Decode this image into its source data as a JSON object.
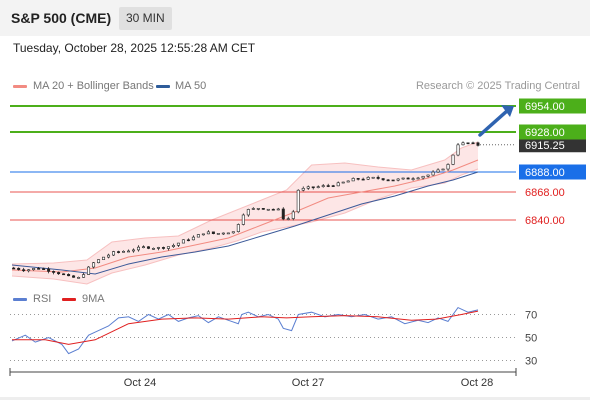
{
  "header": {
    "instrument": "S&P 500 (CME)",
    "timeframe": "30 MIN"
  },
  "datetime": "Tuesday, October 28, 2025 12:55:28 AM CET",
  "legend": {
    "ma20_label": "MA 20 + Bollinger Bands",
    "ma50_label": "MA 50",
    "ma20_color": "#f28b82",
    "ma50_color": "#2e5c9a"
  },
  "copyright": "Research © 2025 Trading Central",
  "rsi_legend": {
    "rsi_label": "RSI",
    "ma_label": "9MA",
    "rsi_color": "#5b7fd1",
    "ma_color": "#e02020"
  },
  "chart_data": [
    {
      "type": "candlestick",
      "x": [
        "Oct 24",
        "Oct 27",
        "Oct 28"
      ],
      "ylim": [
        6775,
        6960
      ],
      "levels": [
        {
          "value": 6954.0,
          "label": "6954.00",
          "color": "#4caf1a",
          "style": "resistance"
        },
        {
          "value": 6928.0,
          "label": "6928.00",
          "color": "#4caf1a",
          "style": "resistance"
        },
        {
          "value": 6915.25,
          "label": "6915.25",
          "color": "#333333",
          "style": "last"
        },
        {
          "value": 6888.0,
          "label": "6888.00",
          "color": "#1a6fe8",
          "style": "pivot"
        },
        {
          "value": 6868.0,
          "label": "6868.00",
          "color": "#e53935",
          "style": "support"
        },
        {
          "value": 6840.0,
          "label": "6840.00",
          "color": "#e53935",
          "style": "support"
        }
      ],
      "price_path": [
        [
          0,
          6792
        ],
        [
          8,
          6790
        ],
        [
          16,
          6792
        ],
        [
          24,
          6789
        ],
        [
          30,
          6786
        ],
        [
          34,
          6783
        ],
        [
          40,
          6782
        ],
        [
          44,
          6788
        ],
        [
          48,
          6796
        ],
        [
          55,
          6803
        ],
        [
          62,
          6808
        ],
        [
          68,
          6809
        ],
        [
          74,
          6811
        ],
        [
          80,
          6813
        ],
        [
          88,
          6812
        ],
        [
          96,
          6814
        ],
        [
          104,
          6820
        ],
        [
          110,
          6823
        ],
        [
          116,
          6828
        ],
        [
          122,
          6826
        ],
        [
          128,
          6828
        ],
        [
          134,
          6828
        ],
        [
          138,
          6845
        ],
        [
          142,
          6850
        ],
        [
          148,
          6852
        ],
        [
          156,
          6851
        ],
        [
          160,
          6850
        ],
        [
          163,
          6842
        ],
        [
          168,
          6841
        ],
        [
          172,
          6870
        ],
        [
          178,
          6872
        ],
        [
          188,
          6874
        ],
        [
          196,
          6876
        ],
        [
          206,
          6881
        ],
        [
          218,
          6882
        ],
        [
          230,
          6880
        ],
        [
          240,
          6882
        ],
        [
          250,
          6885
        ],
        [
          256,
          6889
        ],
        [
          262,
          6895
        ],
        [
          268,
          6916
        ],
        [
          274,
          6917
        ],
        [
          280,
          6915
        ]
      ],
      "ma20_path": [
        [
          0,
          6790
        ],
        [
          30,
          6788
        ],
        [
          50,
          6792
        ],
        [
          70,
          6803
        ],
        [
          90,
          6808
        ],
        [
          110,
          6815
        ],
        [
          130,
          6822
        ],
        [
          150,
          6835
        ],
        [
          170,
          6848
        ],
        [
          190,
          6862
        ],
        [
          210,
          6868
        ],
        [
          230,
          6874
        ],
        [
          250,
          6882
        ],
        [
          265,
          6890
        ],
        [
          280,
          6900
        ]
      ],
      "ma50_path": [
        [
          0,
          6795
        ],
        [
          30,
          6790
        ],
        [
          50,
          6786
        ],
        [
          70,
          6796
        ],
        [
          90,
          6803
        ],
        [
          110,
          6808
        ],
        [
          130,
          6814
        ],
        [
          150,
          6824
        ],
        [
          170,
          6834
        ],
        [
          190,
          6845
        ],
        [
          210,
          6856
        ],
        [
          230,
          6864
        ],
        [
          250,
          6874
        ],
        [
          265,
          6880
        ],
        [
          280,
          6888
        ]
      ],
      "bb_upper": [
        [
          0,
          6796
        ],
        [
          25,
          6797
        ],
        [
          45,
          6800
        ],
        [
          60,
          6818
        ],
        [
          80,
          6822
        ],
        [
          100,
          6824
        ],
        [
          120,
          6840
        ],
        [
          135,
          6850
        ],
        [
          150,
          6860
        ],
        [
          165,
          6870
        ],
        [
          180,
          6895
        ],
        [
          200,
          6897
        ],
        [
          220,
          6893
        ],
        [
          240,
          6890
        ],
        [
          260,
          6900
        ],
        [
          270,
          6912
        ],
        [
          280,
          6918
        ]
      ],
      "bb_lower": [
        [
          0,
          6784
        ],
        [
          25,
          6781
        ],
        [
          45,
          6776
        ],
        [
          60,
          6787
        ],
        [
          80,
          6795
        ],
        [
          100,
          6805
        ],
        [
          120,
          6812
        ],
        [
          135,
          6819
        ],
        [
          150,
          6828
        ],
        [
          165,
          6833
        ],
        [
          180,
          6838
        ],
        [
          200,
          6847
        ],
        [
          220,
          6861
        ],
        [
          240,
          6872
        ],
        [
          260,
          6877
        ],
        [
          270,
          6885
        ],
        [
          280,
          6891
        ]
      ],
      "target_arrow": {
        "from": 6925,
        "to": 6954
      }
    },
    {
      "type": "line",
      "name": "RSI",
      "ylim": [
        20,
        80
      ],
      "yticks": [
        70,
        50,
        30
      ],
      "series": [
        {
          "name": "RSI",
          "values": [
            [
              0,
              47
            ],
            [
              8,
              52
            ],
            [
              14,
              46
            ],
            [
              22,
              50
            ],
            [
              30,
              44
            ],
            [
              34,
              36
            ],
            [
              40,
              40
            ],
            [
              46,
              52
            ],
            [
              52,
              56
            ],
            [
              58,
              60
            ],
            [
              64,
              67
            ],
            [
              70,
              68
            ],
            [
              76,
              64
            ],
            [
              82,
              70
            ],
            [
              88,
              66
            ],
            [
              94,
              70
            ],
            [
              100,
              64
            ],
            [
              106,
              67
            ],
            [
              112,
              69
            ],
            [
              118,
              63
            ],
            [
              124,
              68
            ],
            [
              130,
              65
            ],
            [
              136,
              62
            ],
            [
              138,
              70
            ],
            [
              142,
              72
            ],
            [
              148,
              68
            ],
            [
              154,
              70
            ],
            [
              160,
              66
            ],
            [
              163,
              58
            ],
            [
              168,
              56
            ],
            [
              172,
              70
            ],
            [
              180,
              72
            ],
            [
              188,
              68
            ],
            [
              196,
              70
            ],
            [
              204,
              68
            ],
            [
              212,
              70
            ],
            [
              220,
              66
            ],
            [
              228,
              68
            ],
            [
              236,
              62
            ],
            [
              244,
              65
            ],
            [
              250,
              63
            ],
            [
              256,
              67
            ],
            [
              262,
              64
            ],
            [
              268,
              76
            ],
            [
              274,
              72
            ],
            [
              280,
              74
            ]
          ]
        },
        {
          "name": "9MA",
          "values": [
            [
              0,
              48
            ],
            [
              20,
              48
            ],
            [
              34,
              44
            ],
            [
              50,
              48
            ],
            [
              70,
              62
            ],
            [
              90,
              66
            ],
            [
              110,
              67
            ],
            [
              130,
              66
            ],
            [
              150,
              68
            ],
            [
              165,
              67
            ],
            [
              180,
              68
            ],
            [
              200,
              69
            ],
            [
              220,
              68
            ],
            [
              240,
              65
            ],
            [
              255,
              66
            ],
            [
              270,
              70
            ],
            [
              280,
              73
            ]
          ]
        }
      ]
    }
  ]
}
